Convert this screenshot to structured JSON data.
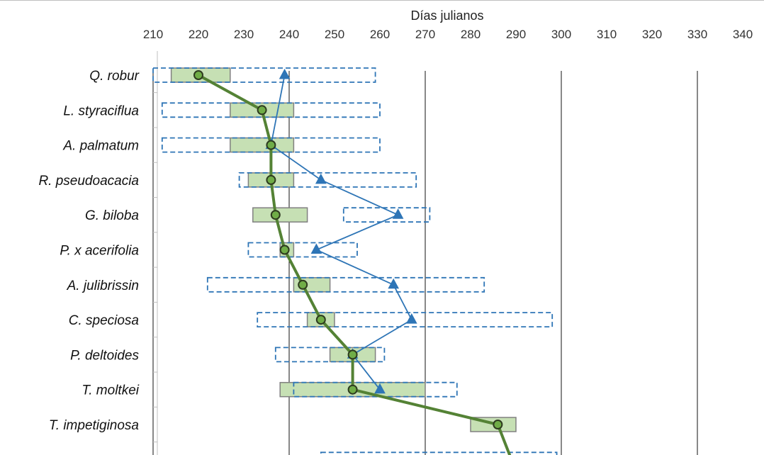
{
  "chart_data": {
    "type": "range-dot",
    "title": "",
    "xlabel": "Días julianos",
    "ylabel": "",
    "xlim": [
      210,
      340
    ],
    "xticks": [
      210,
      220,
      230,
      240,
      250,
      260,
      270,
      280,
      290,
      300,
      310,
      320,
      330,
      340
    ],
    "x_axis_position": "top",
    "vertical_gridlines": [
      210,
      240,
      270,
      300,
      330
    ],
    "legend": "none",
    "categories": [
      "Q. robur",
      "L. styraciflua",
      "A. palmatum",
      "R. pseudoacacia",
      "G. biloba",
      "P. x acerifolia",
      "A. julibrissin",
      "C. speciosa",
      "P. deltoides",
      "T. moltkei",
      "T. impetiginosa",
      ""
    ],
    "series": [
      {
        "style": "green-boxes-circles-thick-line",
        "color": "#548235",
        "fill": "#c6e0b4",
        "ranges": [
          [
            214,
            227
          ],
          [
            227,
            241
          ],
          [
            227,
            241
          ],
          [
            231,
            241
          ],
          [
            232,
            244
          ],
          [
            238,
            241
          ],
          [
            241,
            249
          ],
          [
            244,
            250
          ],
          [
            249,
            259
          ],
          [
            238,
            270
          ],
          [
            280,
            290
          ],
          [
            null,
            null
          ]
        ],
        "points": [
          220,
          234,
          236,
          236,
          237,
          239,
          243,
          247,
          254,
          254,
          286,
          289
        ]
      },
      {
        "style": "blue-dashed-boxes-triangles-thin-line",
        "color": "#2e75b6",
        "ranges": [
          [
            210,
            259
          ],
          [
            212,
            260
          ],
          [
            212,
            260
          ],
          [
            229,
            268
          ],
          [
            252,
            271
          ],
          [
            231,
            255
          ],
          [
            222,
            283
          ],
          [
            233,
            298
          ],
          [
            237,
            261
          ],
          [
            241,
            277
          ],
          [
            null,
            null
          ],
          [
            247,
            299
          ]
        ],
        "points": [
          239,
          null,
          236,
          247,
          264,
          246,
          263,
          267,
          254,
          260,
          null,
          null
        ]
      }
    ]
  }
}
